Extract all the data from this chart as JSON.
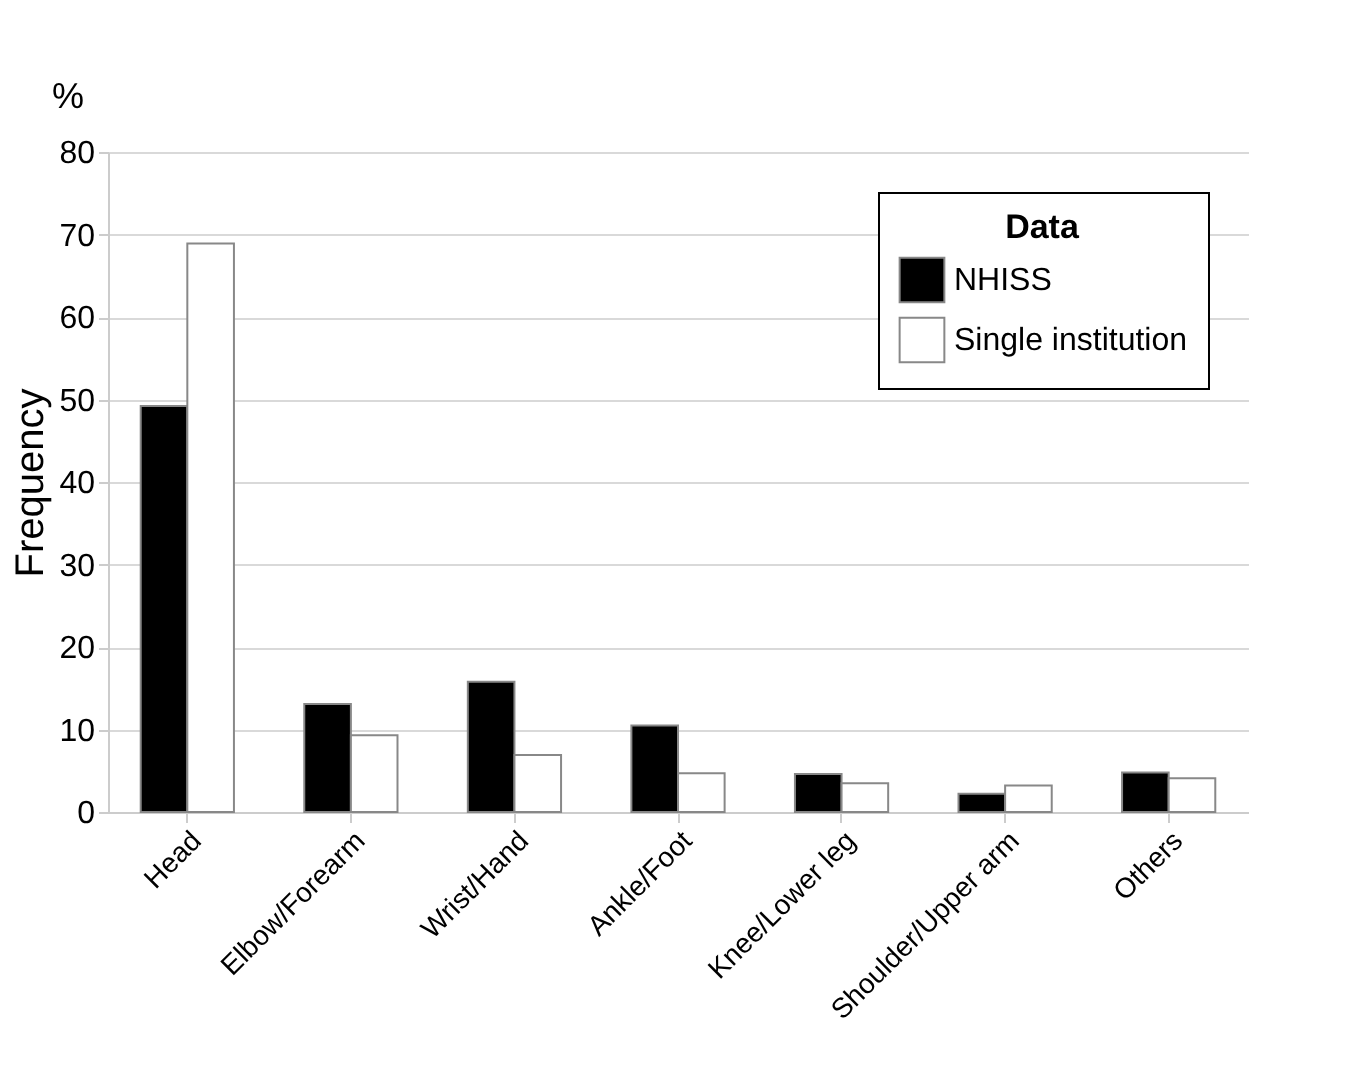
{
  "chart_data": {
    "type": "bar",
    "ylabel": "Frequency",
    "annotations": [
      "%"
    ],
    "legend_title": "Data",
    "categories": [
      "Head",
      "Elbow/Forearm",
      "Wrist/Hand",
      "Ankle/Foot",
      "Knee/Lower leg",
      "Shoulder/Upper arm",
      "Others"
    ],
    "series": [
      {
        "name": "NHISS",
        "color": "#000000",
        "values": [
          49.2,
          13.1,
          15.8,
          10.5,
          4.6,
          2.2,
          4.8
        ]
      },
      {
        "name": "Single institution",
        "color": "#ffffff",
        "values": [
          68.9,
          9.3,
          6.9,
          4.7,
          3.5,
          3.2,
          4.1
        ]
      }
    ],
    "ylim": [
      0,
      80
    ],
    "yticks": [
      0,
      10,
      20,
      30,
      40,
      50,
      60,
      70,
      80
    ],
    "grid": "y",
    "legend": "top right"
  }
}
